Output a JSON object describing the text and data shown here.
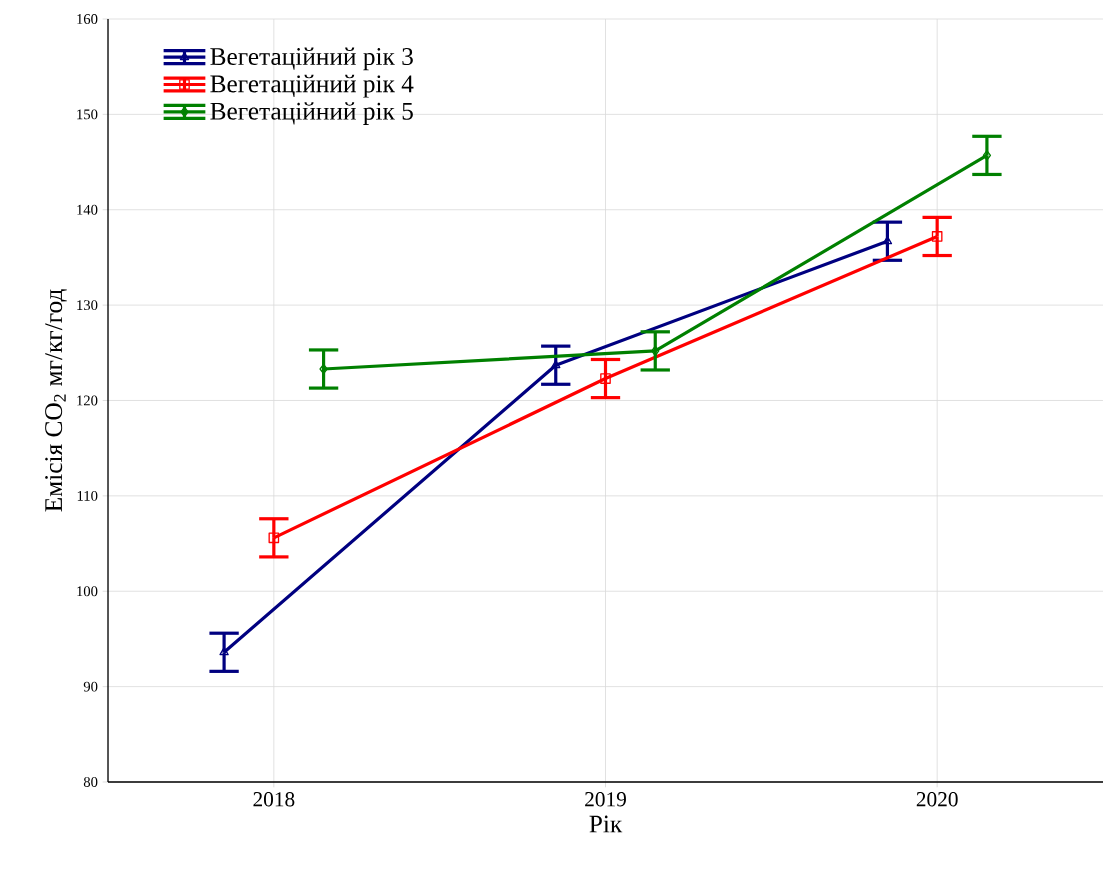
{
  "chart_data": {
    "type": "line",
    "xlabel": "Рік",
    "ylabel": "Емісія  CO$_{2}$ мг/кг/год",
    "categories": [
      "2018",
      "2019",
      "2020"
    ],
    "series": [
      {
        "name": "Вегетаційний рік 3",
        "color": "#000080",
        "marker": "triangle",
        "values": [
          93.6,
          123.7,
          136.7
        ],
        "errors": [
          2,
          2,
          2
        ]
      },
      {
        "name": "Вегетаційний рік 4",
        "color": "#ff0000",
        "marker": "square",
        "values": [
          105.6,
          122.3,
          137.2
        ],
        "errors": [
          2,
          2,
          2
        ]
      },
      {
        "name": "Вегетаційний рік 5",
        "color": "#008000",
        "marker": "diamond",
        "values": [
          123.3,
          125.2,
          145.7
        ],
        "errors": [
          2,
          2,
          2
        ]
      }
    ],
    "ylim": [
      80,
      160
    ],
    "yticks": [
      80,
      90,
      100,
      110,
      120,
      130,
      140,
      150,
      160
    ],
    "grid": true,
    "legend": "top left",
    "line_style": "solid"
  }
}
